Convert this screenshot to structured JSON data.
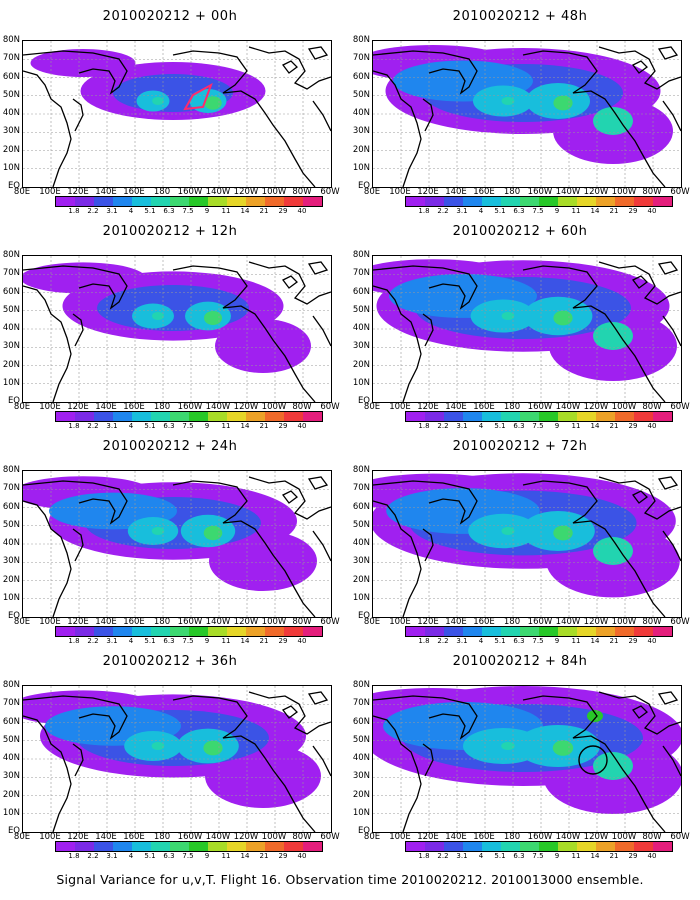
{
  "colorbar": {
    "labels": [
      "1.8",
      "2.2",
      "3.1",
      "4",
      "5.1",
      "6.3",
      "7.5",
      "9",
      "11",
      "14",
      "21",
      "29",
      "40"
    ],
    "colors": [
      "#a020f0",
      "#7b2be6",
      "#3b53e6",
      "#1f86ee",
      "#18bedc",
      "#22d4b0",
      "#3cd870",
      "#28c828",
      "#a8dc28",
      "#e6d628",
      "#eda228",
      "#f06a2a",
      "#f03a3a",
      "#e41e7c"
    ]
  },
  "map": {
    "y_labels": [
      "80N",
      "70N",
      "60N",
      "50N",
      "40N",
      "30N",
      "20N",
      "10N",
      "EQ"
    ],
    "x_labels": [
      "80E",
      "100E",
      "120E",
      "140E",
      "160E",
      "180",
      "160W",
      "140W",
      "120W",
      "100W",
      "80W",
      "60W"
    ]
  },
  "panels": [
    {
      "title": "2010020212 + 00h",
      "forecast_hour": 0,
      "column": "left",
      "spread": 0.25,
      "intensity": 0.45,
      "flight_marker": "track"
    },
    {
      "title": "2010020212 + 12h",
      "forecast_hour": 12,
      "column": "left",
      "spread": 0.45,
      "intensity": 0.5,
      "flight_marker": "none"
    },
    {
      "title": "2010020212 + 24h",
      "forecast_hour": 24,
      "column": "left",
      "spread": 0.6,
      "intensity": 0.55,
      "flight_marker": "none"
    },
    {
      "title": "2010020212 + 36h",
      "forecast_hour": 36,
      "column": "left",
      "spread": 0.7,
      "intensity": 0.6,
      "flight_marker": "none"
    },
    {
      "title": "2010020212 + 48h",
      "forecast_hour": 48,
      "column": "right",
      "spread": 0.75,
      "intensity": 0.6,
      "flight_marker": "none"
    },
    {
      "title": "2010020212 + 60h",
      "forecast_hour": 60,
      "column": "right",
      "spread": 0.85,
      "intensity": 0.6,
      "flight_marker": "none"
    },
    {
      "title": "2010020212 + 72h",
      "forecast_hour": 72,
      "column": "right",
      "spread": 0.92,
      "intensity": 0.62,
      "flight_marker": "none"
    },
    {
      "title": "2010020212 + 84h",
      "forecast_hour": 84,
      "column": "right",
      "spread": 1.0,
      "intensity": 0.7,
      "flight_marker": "circle"
    }
  ],
  "caption": "Signal Variance for u,v,T. Flight 16. Observation time 2010020212. 2010013000 ensemble."
}
